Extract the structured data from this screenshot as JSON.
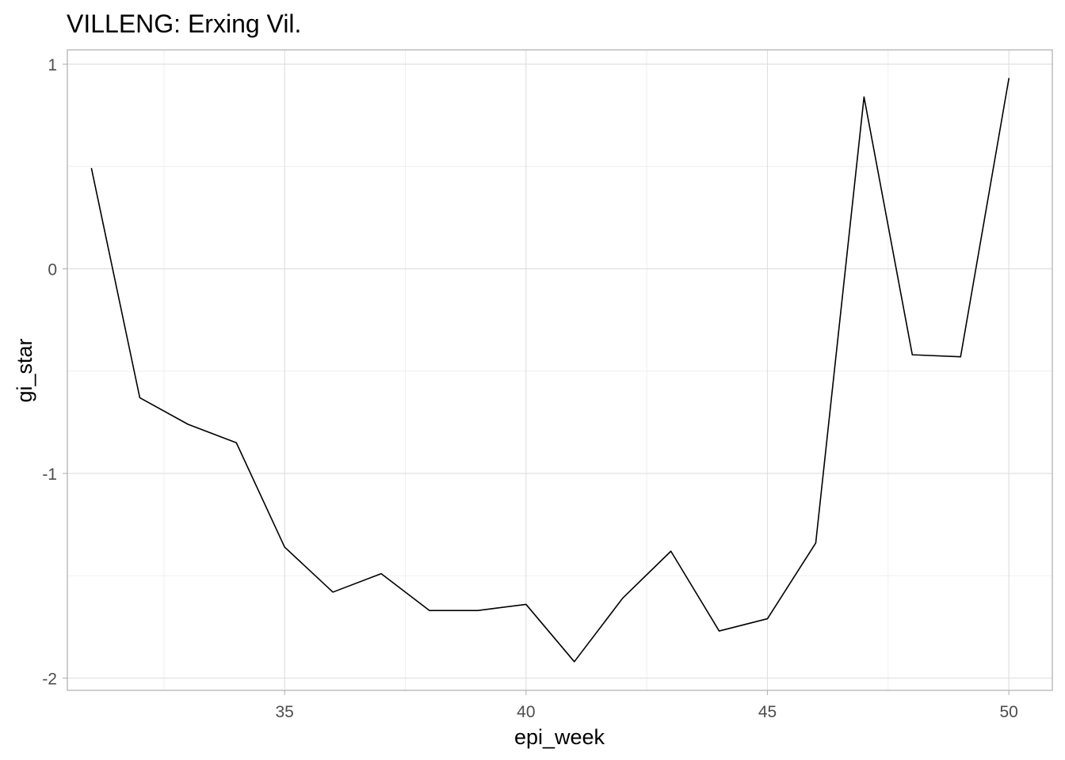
{
  "chart_data": {
    "type": "line",
    "title": "VILLENG: Erxing Vil.",
    "xlabel": "epi_week",
    "ylabel": "gi_star",
    "xlim": [
      30.5,
      50.9
    ],
    "ylim": [
      -2.06,
      1.07
    ],
    "x_ticks": [
      35,
      40,
      45,
      50
    ],
    "x_tick_labels": [
      "35",
      "40",
      "45",
      "50"
    ],
    "x_minor_ticks": [
      32.5,
      37.5,
      42.5,
      47.5
    ],
    "y_ticks": [
      1,
      0,
      -1,
      -2
    ],
    "y_tick_labels": [
      "1",
      "0",
      "-1",
      "-2"
    ],
    "y_minor_ticks": [
      0.5,
      -0.5,
      -1.5
    ],
    "grid": true,
    "legend": "none",
    "series": [
      {
        "color": "#000000",
        "x": [
          31,
          32,
          33,
          34,
          35,
          36,
          37,
          38,
          39,
          40,
          41,
          42,
          43,
          44,
          45,
          46,
          47,
          48,
          49,
          50
        ],
        "y": [
          0.49,
          -0.63,
          -0.76,
          -0.85,
          -1.36,
          -1.58,
          -1.49,
          -1.67,
          -1.67,
          -1.64,
          -1.92,
          -1.61,
          -1.38,
          -1.77,
          -1.71,
          -1.34,
          0.84,
          -0.42,
          -0.43,
          0.93
        ]
      }
    ]
  }
}
